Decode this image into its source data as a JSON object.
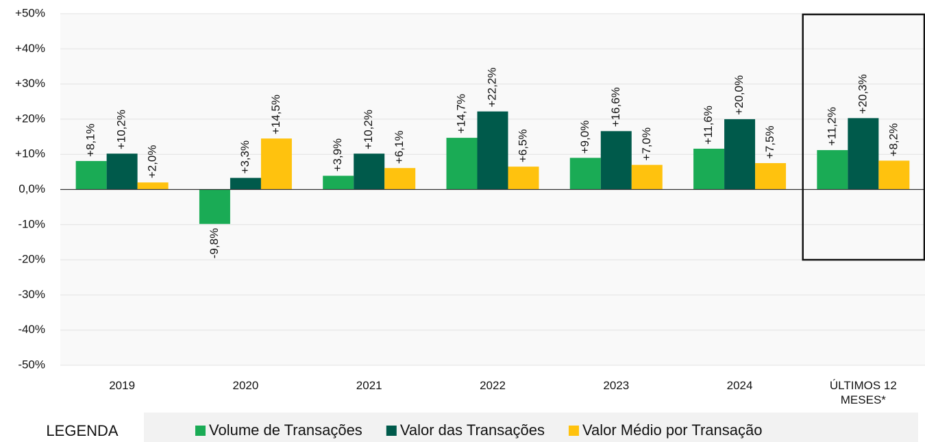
{
  "chart_data": {
    "type": "bar",
    "categories": [
      "2019",
      "2020",
      "2021",
      "2022",
      "2023",
      "2024",
      "ÚLTIMOS 12 MESES*"
    ],
    "series": [
      {
        "name": "Volume de Transações",
        "color": "#1aab55",
        "values": [
          8.1,
          -9.8,
          3.9,
          14.7,
          9.0,
          11.6,
          11.2
        ],
        "value_labels": [
          "+8,1%",
          "-9,8%",
          "+3,9%",
          "+14,7%",
          "+9,0%",
          "+11,6%",
          "+11,2%"
        ]
      },
      {
        "name": "Valor das Transações",
        "color": "#005a4b",
        "values": [
          10.2,
          3.3,
          10.2,
          22.2,
          16.6,
          20.0,
          20.3
        ],
        "value_labels": [
          "+10,2%",
          "+3,3%",
          "+10,2%",
          "+22,2%",
          "+16,6%",
          "+20,0%",
          "+20,3%"
        ]
      },
      {
        "name": "Valor Médio por Transação",
        "color": "#ffc20e",
        "values": [
          2.0,
          14.5,
          6.1,
          6.5,
          7.0,
          7.5,
          8.2
        ],
        "value_labels": [
          "+2,0%",
          "+14,5%",
          "+6,1%",
          "+6,5%",
          "+7,0%",
          "+7,5%",
          "+8,2%"
        ]
      }
    ],
    "ylim": [
      -50,
      50
    ],
    "yticks": [
      {
        "value": -50,
        "label": "-50%"
      },
      {
        "value": -40,
        "label": "-40%"
      },
      {
        "value": -30,
        "label": "-30%"
      },
      {
        "value": -20,
        "label": "-20%"
      },
      {
        "value": -10,
        "label": "-10%"
      },
      {
        "value": 0,
        "label": "0,0%"
      },
      {
        "value": 10,
        "label": "+10%"
      },
      {
        "value": 20,
        "label": "+20%"
      },
      {
        "value": 30,
        "label": "+30%"
      },
      {
        "value": 40,
        "label": "+40%"
      },
      {
        "value": 50,
        "label": "+50%"
      }
    ],
    "grid": true,
    "legend_title": "LEGENDA"
  }
}
